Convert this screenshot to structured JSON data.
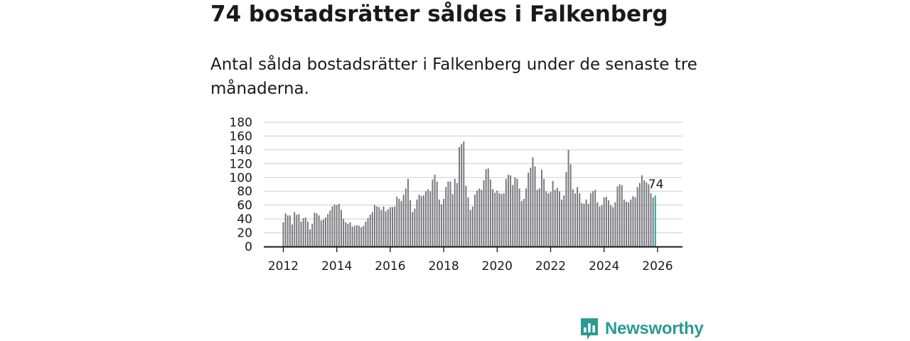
{
  "colors": {
    "bar": "#77767d",
    "highlight": "#27a19a",
    "grid": "#d9d9d9",
    "axis": "#1a1a1a",
    "brand": "#2b9a91"
  },
  "brand": {
    "name": "Newsworthy",
    "icon": "chart-logo-icon"
  },
  "chart_data": {
    "type": "bar",
    "title": "74 bostadsrätter såldes i Falkenberg",
    "subtitle": "Antal sålda bostadsrätter i Falkenberg under de senaste tre månaderna.",
    "xlabel": "",
    "ylabel": "",
    "ylim": [
      0,
      180
    ],
    "yticks": [
      "0",
      "20",
      "40",
      "60",
      "80",
      "100",
      "120",
      "140",
      "160",
      "180"
    ],
    "xticks": [
      "2012",
      "2014",
      "2016",
      "2018",
      "2020",
      "2022",
      "2024",
      "2026"
    ],
    "x_start": "2012-01",
    "frequency": "monthly",
    "highlight_label": "74",
    "values": [
      35,
      48,
      45,
      45,
      32,
      50,
      46,
      47,
      36,
      41,
      42,
      36,
      25,
      33,
      49,
      48,
      45,
      38,
      39,
      42,
      47,
      52,
      58,
      61,
      60,
      62,
      53,
      40,
      35,
      33,
      35,
      29,
      30,
      31,
      30,
      28,
      30,
      36,
      41,
      46,
      50,
      60,
      58,
      57,
      53,
      58,
      51,
      54,
      57,
      57,
      58,
      72,
      69,
      66,
      75,
      84,
      98,
      67,
      50,
      55,
      68,
      75,
      73,
      74,
      80,
      83,
      80,
      97,
      104,
      94,
      68,
      61,
      69,
      86,
      94,
      94,
      76,
      98,
      92,
      144,
      148,
      152,
      88,
      71,
      53,
      58,
      75,
      81,
      84,
      82,
      96,
      112,
      113,
      97,
      83,
      78,
      81,
      77,
      76,
      77,
      98,
      104,
      103,
      89,
      100,
      98,
      84,
      66,
      69,
      84,
      107,
      114,
      129,
      116,
      82,
      84,
      111,
      98,
      80,
      77,
      79,
      95,
      82,
      85,
      80,
      68,
      74,
      108,
      140,
      119,
      83,
      77,
      86,
      77,
      63,
      62,
      68,
      62,
      77,
      80,
      82,
      64,
      58,
      60,
      71,
      72,
      67,
      60,
      57,
      64,
      87,
      90,
      89,
      68,
      65,
      64,
      68,
      73,
      71,
      86,
      92,
      103,
      96,
      93,
      90,
      77,
      71,
      74
    ]
  }
}
